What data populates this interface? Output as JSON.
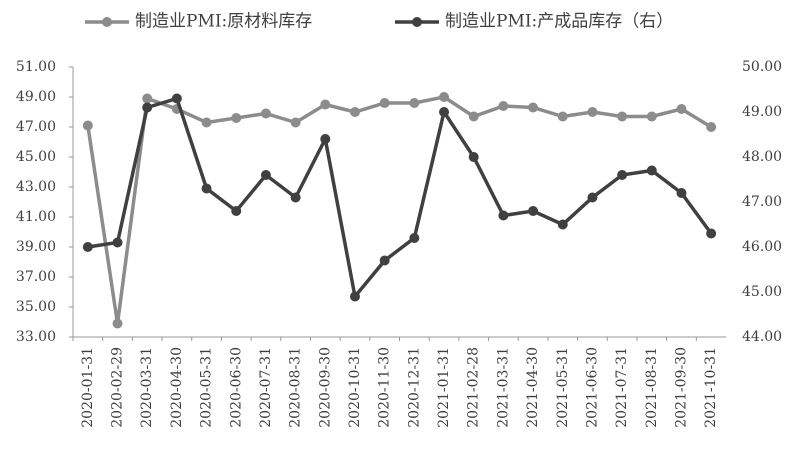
{
  "chart_data": {
    "type": "line",
    "categories": [
      "2020-01-31",
      "2020-02-29",
      "2020-03-31",
      "2020-04-30",
      "2020-05-31",
      "2020-06-30",
      "2020-07-31",
      "2020-08-31",
      "2020-09-30",
      "2020-10-31",
      "2020-11-30",
      "2020-12-31",
      "2021-01-31",
      "2021-02-28",
      "2021-03-31",
      "2021-04-30",
      "2021-05-31",
      "2021-06-30",
      "2021-07-31",
      "2021-08-31",
      "2021-09-30",
      "2021-10-31"
    ],
    "series": [
      {
        "name": "制造业PMI:原材料库存",
        "color": "#8c8c8c",
        "axis": "y",
        "values": [
          47.1,
          33.9,
          48.9,
          48.2,
          47.3,
          47.6,
          47.9,
          47.3,
          48.5,
          48.0,
          48.6,
          48.6,
          49.0,
          47.7,
          48.4,
          48.3,
          47.7,
          48.0,
          47.7,
          47.7,
          48.2,
          47.0
        ]
      },
      {
        "name": "制造业PMI:产成品库存（右）",
        "color": "#404040",
        "axis": "y2",
        "values": [
          46.0,
          46.1,
          49.1,
          49.3,
          47.3,
          46.8,
          47.6,
          47.1,
          48.4,
          44.9,
          45.7,
          46.2,
          49.0,
          48.0,
          46.7,
          46.8,
          46.5,
          47.1,
          47.6,
          47.7,
          47.2,
          46.3
        ]
      }
    ],
    "ylim": [
      33,
      51
    ],
    "yticks": [
      {
        "value": 33,
        "label": "33.00"
      },
      {
        "value": 35,
        "label": "35.00"
      },
      {
        "value": 37,
        "label": "37.00"
      },
      {
        "value": 39,
        "label": "39.00"
      },
      {
        "value": 41,
        "label": "41.00"
      },
      {
        "value": 43,
        "label": "43.00"
      },
      {
        "value": 45,
        "label": "45.00"
      },
      {
        "value": 47,
        "label": "47.00"
      },
      {
        "value": 49,
        "label": "49.00"
      },
      {
        "value": 51,
        "label": "51.00"
      }
    ],
    "y2lim": [
      44,
      50
    ],
    "y2ticks": [
      {
        "value": 44,
        "label": "44.00"
      },
      {
        "value": 45,
        "label": "45.00"
      },
      {
        "value": 46,
        "label": "46.00"
      },
      {
        "value": 47,
        "label": "47.00"
      },
      {
        "value": 48,
        "label": "48.00"
      },
      {
        "value": 49,
        "label": "49.00"
      },
      {
        "value": 50,
        "label": "50.00"
      }
    ],
    "grid": false
  }
}
